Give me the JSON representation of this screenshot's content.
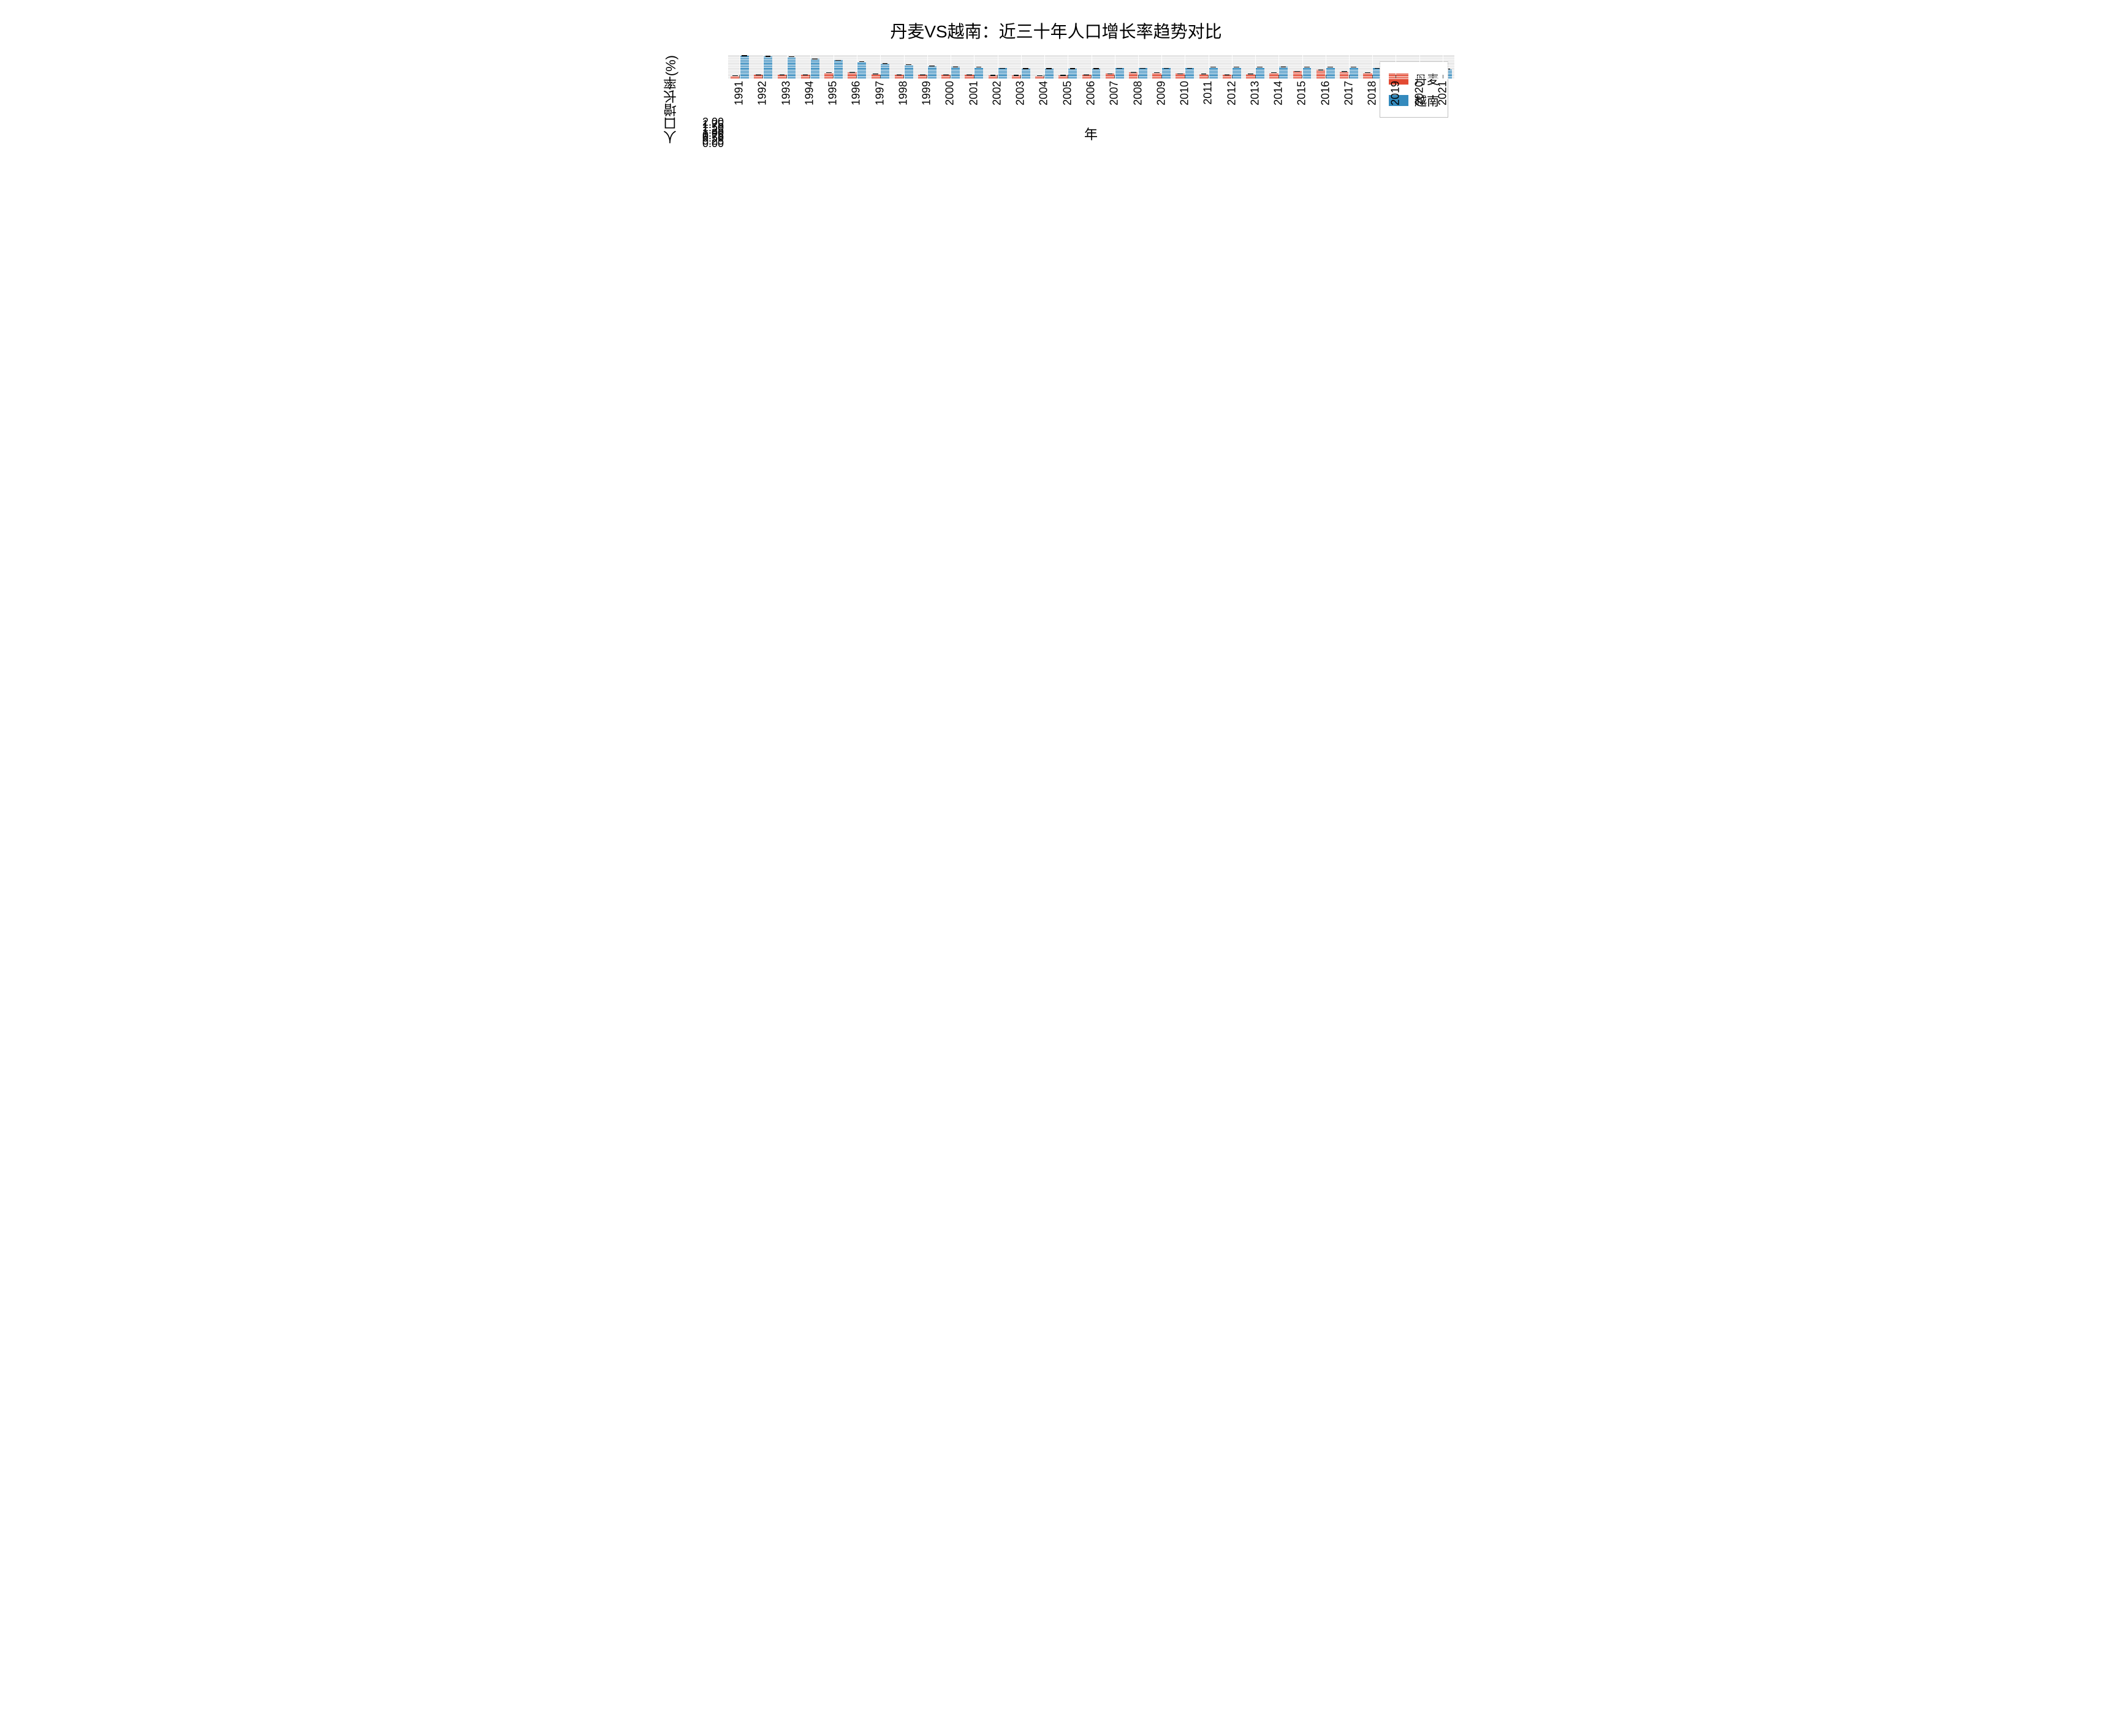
{
  "chart": {
    "type": "bar",
    "title": "丹麦VS越南：近三十年人口增长率趋势对比",
    "title_fontsize": 28,
    "xlabel": "年",
    "ylabel": "人口增长率(%)",
    "label_fontsize": 22,
    "tick_fontsize": 18,
    "background_color": "#ffffff",
    "plot_background_color": "#e5e5e5",
    "grid_color": "#ffffff",
    "ylim": [
      0.0,
      2.15
    ],
    "yticks": [
      0.0,
      0.25,
      0.5,
      0.75,
      1.0,
      1.25,
      1.5,
      1.75,
      2.0
    ],
    "ytick_labels": [
      "0.00",
      "0.25",
      "0.50",
      "0.75",
      "1.00",
      "1.25",
      "1.50",
      "1.75",
      "2.00"
    ],
    "bar_width": 0.38,
    "error_cap": true,
    "categories": [
      "1991",
      "1992",
      "1993",
      "1994",
      "1995",
      "1996",
      "1997",
      "1998",
      "1999",
      "2000",
      "2001",
      "2002",
      "2003",
      "2004",
      "2005",
      "2006",
      "2007",
      "2008",
      "2009",
      "2010",
      "2011",
      "2012",
      "2013",
      "2014",
      "2015",
      "2016",
      "2017",
      "2018",
      "2019",
      "2020",
      "2021"
    ],
    "series": [
      {
        "name": "丹麦",
        "color": "#e24a33",
        "values": [
          0.26,
          0.33,
          0.33,
          0.34,
          0.52,
          0.57,
          0.42,
          0.36,
          0.33,
          0.34,
          0.36,
          0.32,
          0.27,
          0.26,
          0.28,
          0.33,
          0.45,
          0.59,
          0.54,
          0.45,
          0.41,
          0.38,
          0.42,
          0.51,
          0.71,
          0.78,
          0.65,
          0.5,
          0.36,
          0.29,
          0.44
        ]
      },
      {
        "name": "越南",
        "color": "#348abd",
        "values": [
          2.11,
          2.06,
          1.98,
          1.85,
          1.7,
          1.53,
          1.39,
          1.27,
          1.17,
          1.1,
          1.04,
          0.98,
          0.94,
          0.92,
          0.92,
          0.93,
          0.95,
          0.96,
          0.98,
          1.0,
          1.02,
          1.04,
          1.05,
          1.06,
          1.05,
          1.04,
          1.02,
          1.0,
          0.96,
          0.91,
          0.85
        ]
      }
    ],
    "legend": {
      "position": "upper right",
      "border_color": "#bfbfbf",
      "background_color": "#ffffff",
      "fontsize": 20
    }
  }
}
